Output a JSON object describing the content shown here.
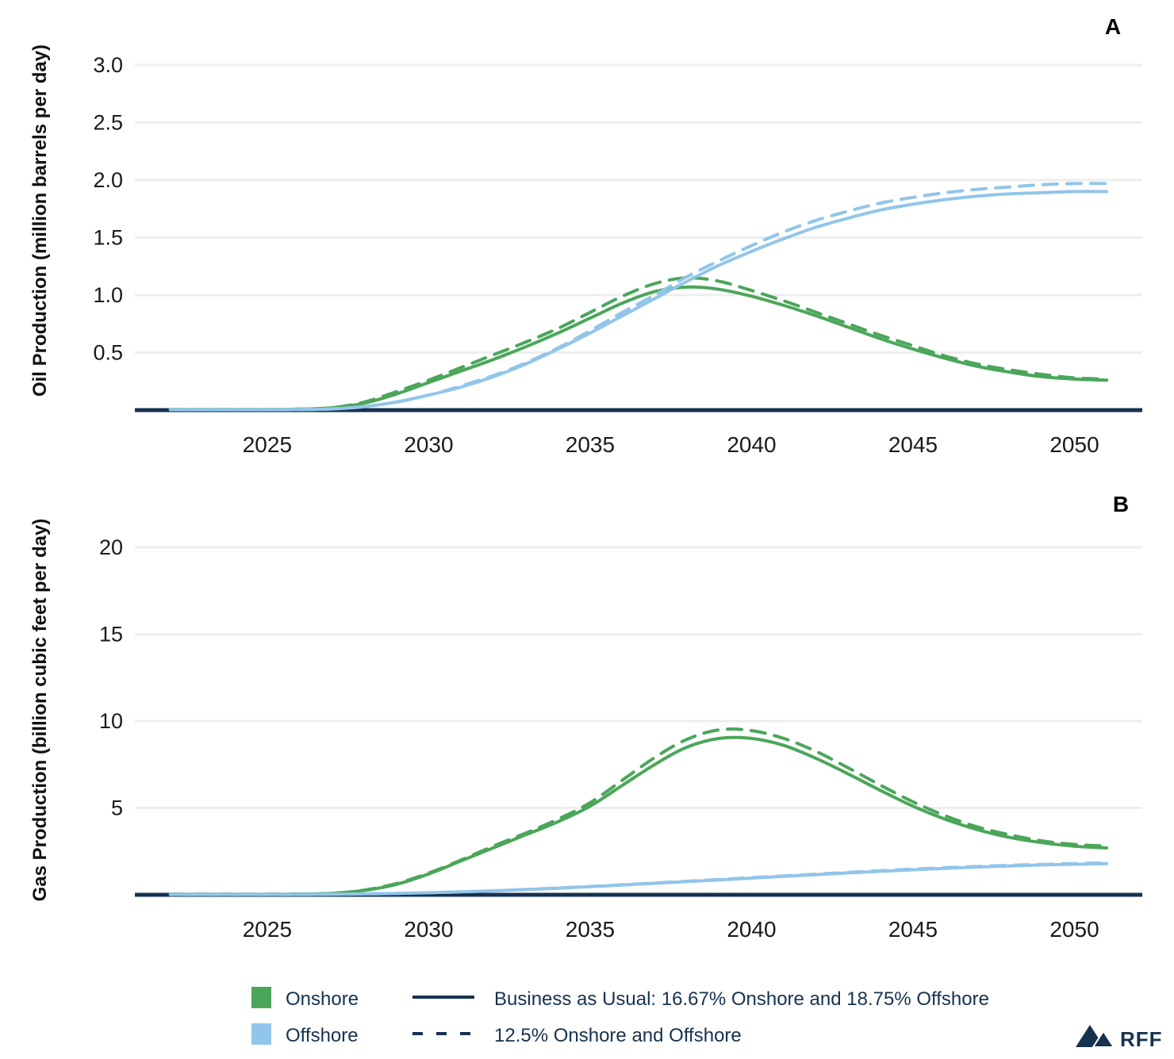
{
  "colors": {
    "onshore": "#4BA65A",
    "offshore": "#92C5EA",
    "navy": "#16324F",
    "gridline": "#ECEEEF",
    "tick_text": "#1A1A1A"
  },
  "legend": {
    "onshore_label": "Onshore",
    "offshore_label": "Offshore",
    "bau_label": "Business as Usual: 16.67% Onshore and 18.75% Offshore",
    "alt_label": "12.5% Onshore and Offshore"
  },
  "logo": {
    "text": "RFF"
  },
  "chart_data": [
    {
      "type": "line",
      "panel_label": "A",
      "ylabel": "Oil Production (million barrels per day)",
      "xlabel": "",
      "grid": true,
      "legend_position": "bottom-shared",
      "ylim": [
        0,
        3.05
      ],
      "xlim": [
        2020.9,
        2052.1
      ],
      "yticks": [
        0.5,
        1.0,
        1.5,
        2.0,
        2.5,
        3.0
      ],
      "ytick_labels": [
        "0.5",
        "1.0",
        "1.5",
        "2.0",
        "2.5",
        "3.0"
      ],
      "xticks": [
        2025,
        2030,
        2035,
        2040,
        2045,
        2050
      ],
      "xtick_labels": [
        "2025",
        "2030",
        "2035",
        "2040",
        "2045",
        "2050"
      ],
      "x": [
        2022,
        2023,
        2024,
        2025,
        2026,
        2027,
        2028,
        2029,
        2030,
        2031,
        2032,
        2033,
        2034,
        2035,
        2036,
        2037,
        2038,
        2039,
        2040,
        2041,
        2042,
        2043,
        2044,
        2045,
        2046,
        2047,
        2048,
        2049,
        2050,
        2051
      ],
      "series": [
        {
          "name": "Onshore — Business as Usual",
          "group": "onshore",
          "style": "solid",
          "values": [
            0.005,
            0.005,
            0.005,
            0.005,
            0.008,
            0.02,
            0.06,
            0.14,
            0.24,
            0.34,
            0.44,
            0.55,
            0.67,
            0.8,
            0.93,
            1.03,
            1.07,
            1.05,
            0.99,
            0.91,
            0.82,
            0.72,
            0.62,
            0.53,
            0.45,
            0.38,
            0.33,
            0.29,
            0.27,
            0.26
          ]
        },
        {
          "name": "Onshore — 12.5%",
          "group": "onshore",
          "style": "dashed",
          "values": [
            0.005,
            0.005,
            0.005,
            0.005,
            0.008,
            0.02,
            0.07,
            0.16,
            0.26,
            0.37,
            0.48,
            0.59,
            0.71,
            0.85,
            0.99,
            1.1,
            1.15,
            1.12,
            1.04,
            0.95,
            0.85,
            0.75,
            0.65,
            0.56,
            0.47,
            0.4,
            0.35,
            0.31,
            0.28,
            0.27
          ]
        },
        {
          "name": "Offshore — Business as Usual",
          "group": "offshore",
          "style": "solid",
          "values": [
            0.004,
            0.004,
            0.004,
            0.004,
            0.005,
            0.01,
            0.03,
            0.07,
            0.13,
            0.2,
            0.29,
            0.4,
            0.53,
            0.67,
            0.82,
            0.97,
            1.12,
            1.26,
            1.38,
            1.49,
            1.59,
            1.67,
            1.74,
            1.79,
            1.83,
            1.86,
            1.88,
            1.89,
            1.9,
            1.9
          ]
        },
        {
          "name": "Offshore — 12.5%",
          "group": "offshore",
          "style": "dashed",
          "values": [
            0.004,
            0.004,
            0.004,
            0.004,
            0.005,
            0.01,
            0.03,
            0.07,
            0.13,
            0.21,
            0.3,
            0.41,
            0.54,
            0.69,
            0.85,
            1.0,
            1.16,
            1.3,
            1.43,
            1.55,
            1.65,
            1.73,
            1.8,
            1.85,
            1.89,
            1.92,
            1.94,
            1.96,
            1.97,
            1.97
          ]
        }
      ]
    },
    {
      "type": "line",
      "panel_label": "B",
      "ylabel": "Gas Production (billion cubic feet per day)",
      "xlabel": "",
      "grid": true,
      "legend_position": "bottom-shared",
      "ylim": [
        0,
        21
      ],
      "xlim": [
        2020.9,
        2052.1
      ],
      "yticks": [
        5,
        10,
        15,
        20
      ],
      "ytick_labels": [
        "5",
        "10",
        "15",
        "20"
      ],
      "xticks": [
        2025,
        2030,
        2035,
        2040,
        2045,
        2050
      ],
      "xtick_labels": [
        "2025",
        "2030",
        "2035",
        "2040",
        "2045",
        "2050"
      ],
      "x": [
        2022,
        2023,
        2024,
        2025,
        2026,
        2027,
        2028,
        2029,
        2030,
        2031,
        2032,
        2033,
        2034,
        2035,
        2036,
        2037,
        2038,
        2039,
        2040,
        2041,
        2042,
        2043,
        2044,
        2045,
        2046,
        2047,
        2048,
        2049,
        2050,
        2051
      ],
      "series": [
        {
          "name": "Onshore — Business as Usual",
          "group": "onshore",
          "style": "solid",
          "values": [
            0.03,
            0.03,
            0.03,
            0.03,
            0.04,
            0.08,
            0.25,
            0.6,
            1.2,
            1.95,
            2.7,
            3.45,
            4.2,
            5.1,
            6.3,
            7.5,
            8.5,
            9.0,
            9.0,
            8.6,
            7.85,
            6.95,
            6.0,
            5.1,
            4.35,
            3.75,
            3.3,
            3.0,
            2.8,
            2.7
          ]
        },
        {
          "name": "Onshore — 12.5%",
          "group": "onshore",
          "style": "dashed",
          "values": [
            0.03,
            0.03,
            0.03,
            0.03,
            0.04,
            0.08,
            0.27,
            0.65,
            1.25,
            2.0,
            2.8,
            3.55,
            4.35,
            5.3,
            6.6,
            7.9,
            8.95,
            9.5,
            9.45,
            9.0,
            8.25,
            7.3,
            6.3,
            5.35,
            4.55,
            3.9,
            3.45,
            3.1,
            2.9,
            2.8
          ]
        },
        {
          "name": "Offshore — Business as Usual",
          "group": "offshore",
          "style": "solid",
          "values": [
            0.02,
            0.02,
            0.02,
            0.02,
            0.02,
            0.03,
            0.05,
            0.08,
            0.12,
            0.17,
            0.23,
            0.3,
            0.38,
            0.47,
            0.56,
            0.66,
            0.76,
            0.86,
            0.96,
            1.06,
            1.16,
            1.26,
            1.35,
            1.44,
            1.52,
            1.6,
            1.66,
            1.72,
            1.76,
            1.79
          ]
        },
        {
          "name": "Offshore — 12.5%",
          "group": "offshore",
          "style": "dashed",
          "values": [
            0.02,
            0.02,
            0.02,
            0.02,
            0.02,
            0.03,
            0.05,
            0.08,
            0.12,
            0.17,
            0.23,
            0.31,
            0.39,
            0.48,
            0.58,
            0.68,
            0.78,
            0.88,
            0.99,
            1.09,
            1.19,
            1.29,
            1.39,
            1.48,
            1.56,
            1.63,
            1.7,
            1.75,
            1.8,
            1.83
          ]
        }
      ]
    }
  ]
}
